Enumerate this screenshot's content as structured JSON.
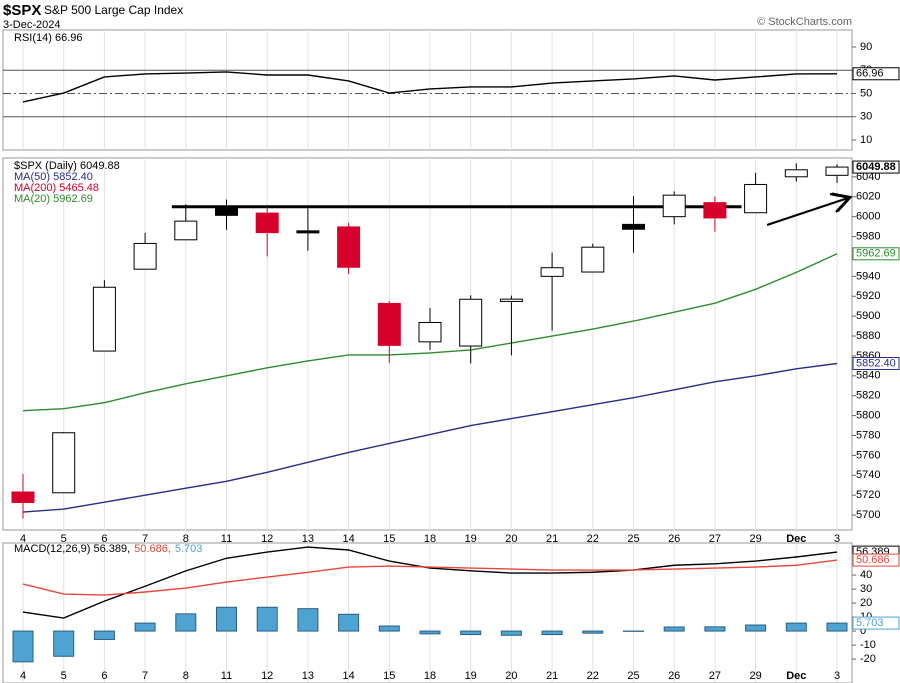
{
  "header": {
    "symbol": "$SPX",
    "name": "S&P 500 Large Cap Index",
    "date": "3-Dec-2024",
    "credit": "© StockCharts.com"
  },
  "chart_data": [
    {
      "type": "line",
      "ylim": [
        1.4,
        104.6
      ],
      "yticks": [
        90,
        70,
        50,
        30,
        10
      ],
      "hlines": [
        {
          "value": 70,
          "style": "solid"
        },
        {
          "value": 50,
          "style": "dashdot"
        },
        {
          "value": 30,
          "style": "solid"
        }
      ],
      "series": [
        {
          "name": "RSI(14) 66.96",
          "color": "#000000",
          "values": [
            42.7,
            50.4,
            64.2,
            66.8,
            67.6,
            68.5,
            65.9,
            65.9,
            60.8,
            50.4,
            53.9,
            55.6,
            55.6,
            59.0,
            60.8,
            62.5,
            65.1,
            61.6,
            64.2,
            66.8,
            66.96
          ],
          "value_labels": [
            null,
            null,
            null,
            null,
            null,
            null,
            null,
            null,
            null,
            null,
            null,
            null,
            null,
            null,
            null,
            null,
            null,
            null,
            null,
            null,
            "66.96"
          ]
        }
      ]
    },
    {
      "type": "candlestick",
      "name": "$SPX (Daily) 6049.88",
      "categories": [
        "4",
        "5",
        "6",
        "7",
        "8",
        "11",
        "12",
        "13",
        "14",
        "15",
        "18",
        "19",
        "20",
        "21",
        "22",
        "25",
        "26",
        "27",
        "29",
        "Dec",
        "3"
      ],
      "ylim": [
        5685,
        6059
      ],
      "yticks": [
        5700,
        5720,
        5740,
        5760,
        5780,
        5800,
        5820,
        5840,
        5860,
        5880,
        5900,
        5920,
        5940,
        5960,
        5980,
        6000,
        6020,
        6040
      ],
      "grid": "x",
      "open": [
        5723.22,
        5722.43,
        5864.89,
        5947.21,
        5976.76,
        6008.86,
        6003.6,
        5985.75,
        5989.68,
        5912.79,
        5874.17,
        5869.95,
        5914.81,
        5940.0,
        5944.36,
        5992.28,
        6000.03,
        6014.11,
        6003.98,
        6040.11,
        6041.57
      ],
      "high": [
        5741.43,
        5783.44,
        5936.14,
        5983.84,
        6012.45,
        6017.31,
        6009.92,
        6008.19,
        5993.88,
        5915.13,
        5908.12,
        5920.9,
        5920.67,
        5963.84,
        5972.9,
        6020.75,
        6025.42,
        6020.16,
        6044.17,
        6053.58,
        6052.62
      ],
      "low": [
        5696.51,
        5722.1,
        5864.89,
        5947.21,
        5976.76,
        5986.69,
        5960.08,
        5965.91,
        5942.28,
        5853.01,
        5865.95,
        5852.51,
        5860.58,
        5885.51,
        5944.36,
        5963.91,
        5992.27,
        5984.87,
        6003.98,
        6035.33,
        6033.91
      ],
      "close": [
        5712.69,
        5782.76,
        5929.04,
        5973.1,
        5995.54,
        6001.35,
        5983.99,
        5985.38,
        5949.17,
        5870.62,
        5893.62,
        5916.98,
        5917.11,
        5948.71,
        5969.34,
        5987.37,
        6021.63,
        5998.74,
        6032.38,
        6047.15,
        6049.88
      ],
      "colors": [
        "#d6002a",
        "#ffffff",
        "#ffffff",
        "#ffffff",
        "#ffffff",
        "#000000",
        "#d6002a",
        "#000000",
        "#d6002a",
        "#d6002a",
        "#ffffff",
        "#ffffff",
        "#ffffff",
        "#ffffff",
        "#ffffff",
        "#000000",
        "#ffffff",
        "#d6002a",
        "#ffffff",
        "#ffffff",
        "#ffffff"
      ],
      "value_labels": [
        null,
        null,
        null,
        null,
        null,
        null,
        null,
        null,
        null,
        null,
        null,
        null,
        null,
        null,
        null,
        null,
        null,
        null,
        null,
        null,
        "6049.88"
      ],
      "series": [
        {
          "name": "MA(50) 5852.40",
          "color": "#2b2b8c",
          "values": [
            5703,
            5706,
            5713,
            5720,
            5727,
            5734,
            5743,
            5753,
            5763,
            5772,
            5781,
            5790,
            5797,
            5804,
            5811,
            5818,
            5826,
            5834,
            5840,
            5847,
            5852.4
          ],
          "value_labels": [
            null,
            null,
            null,
            null,
            null,
            null,
            null,
            null,
            null,
            null,
            null,
            null,
            null,
            null,
            null,
            null,
            null,
            null,
            null,
            null,
            "5852.40"
          ]
        },
        {
          "name": "MA(200) 5465.48",
          "color": "#d6002a",
          "values": [
            null,
            null,
            null,
            null,
            null,
            null,
            null,
            null,
            null,
            null,
            null,
            null,
            null,
            null,
            null,
            null,
            null,
            null,
            null,
            null,
            null
          ]
        },
        {
          "name": "MA(20) 5962.69",
          "color": "#2e8b2e",
          "values": [
            5805,
            5807,
            5813,
            5823,
            5832,
            5840,
            5848,
            5855,
            5861,
            5861,
            5863,
            5866,
            5873,
            5880,
            5887,
            5895,
            5904,
            5913,
            5927,
            5944,
            5962.69
          ],
          "value_labels": [
            null,
            null,
            null,
            null,
            null,
            null,
            null,
            null,
            null,
            null,
            null,
            null,
            null,
            null,
            null,
            null,
            null,
            null,
            null,
            null,
            "5962.69"
          ]
        }
      ],
      "annotations": [
        {
          "type": "hline",
          "value": 6010,
          "from": "8",
          "to": "29",
          "color": "#000000"
        }
      ]
    },
    {
      "type": "combo",
      "categories": [
        "4",
        "5",
        "6",
        "7",
        "8",
        "11",
        "12",
        "13",
        "14",
        "15",
        "18",
        "19",
        "20",
        "21",
        "22",
        "25",
        "26",
        "27",
        "29",
        "Dec",
        "3"
      ],
      "ylim": [
        -37.1,
        62.9
      ],
      "yticks": [
        40,
        30,
        20,
        10,
        0,
        -10,
        -20
      ],
      "grid": "x",
      "series": [
        {
          "name": "MACD(12,26,9) 56.389,",
          "type": "line",
          "color": "#000000",
          "values": [
            13.6,
            9.3,
            21.4,
            32,
            43,
            52,
            56.4,
            60,
            57.9,
            50,
            45,
            43,
            41.4,
            41.4,
            42,
            43.6,
            47,
            48,
            50,
            52.9,
            56.389
          ],
          "value_labels": [
            null,
            null,
            null,
            null,
            null,
            null,
            null,
            null,
            null,
            null,
            null,
            null,
            null,
            null,
            null,
            null,
            null,
            null,
            null,
            null,
            "56.389"
          ]
        },
        {
          "name": "50.686,",
          "type": "line",
          "color": "#e8463c",
          "values": [
            33.6,
            26.4,
            25.7,
            27.9,
            30.7,
            35,
            38.6,
            42,
            45.7,
            46.4,
            45.7,
            45,
            44.3,
            43.6,
            43.6,
            43.6,
            44.3,
            45,
            45.7,
            47,
            50.686
          ],
          "value_labels": [
            null,
            null,
            null,
            null,
            null,
            null,
            null,
            null,
            null,
            null,
            null,
            null,
            null,
            null,
            null,
            null,
            null,
            null,
            null,
            null,
            "50.686"
          ]
        },
        {
          "name": "5.703",
          "type": "bar",
          "color": "#4ea3d2",
          "values": [
            -22,
            -18,
            -6,
            5.7,
            12.3,
            17,
            17,
            16,
            12,
            3.6,
            -2,
            -2.5,
            -3,
            -2.5,
            -1.5,
            -0.2,
            2.9,
            3,
            4.3,
            5.7,
            5.703
          ],
          "value_labels": [
            null,
            null,
            null,
            null,
            null,
            null,
            null,
            null,
            null,
            null,
            null,
            null,
            null,
            null,
            null,
            null,
            null,
            null,
            null,
            null,
            "5.703"
          ]
        }
      ]
    }
  ]
}
